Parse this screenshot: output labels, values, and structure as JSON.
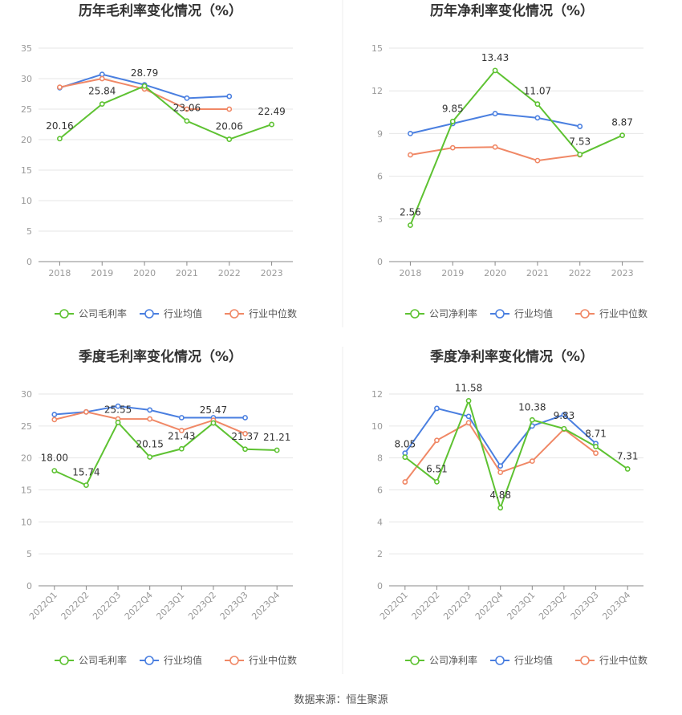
{
  "source_text": "数据来源：恒生聚源",
  "colors": {
    "company": "#5ec232",
    "avg": "#4a7fe0",
    "median": "#f08866",
    "grid": "#e6e6e6",
    "axis": "#888888",
    "tick": "#999999",
    "title": "#333333"
  },
  "chart_data": [
    {
      "type": "line",
      "title": "历年毛利率变化情况（%）",
      "categories": [
        "2018",
        "2019",
        "2020",
        "2021",
        "2022",
        "2023"
      ],
      "ylim": [
        0,
        35
      ],
      "yticks": [
        0,
        5,
        10,
        15,
        20,
        25,
        30,
        35
      ],
      "rotate_x": false,
      "series": [
        {
          "name": "公司毛利率",
          "values": [
            20.16,
            25.84,
            28.79,
            23.06,
            20.06,
            22.49
          ],
          "labels": [
            "20.16",
            "25.84",
            "28.79",
            "23.06",
            "20.06",
            "22.49"
          ]
        },
        {
          "name": "行业均值",
          "values": [
            28.5,
            30.7,
            29.0,
            26.8,
            27.1,
            null
          ]
        },
        {
          "name": "行业中位数",
          "values": [
            28.6,
            30.0,
            28.3,
            25.0,
            25.0,
            null
          ]
        }
      ]
    },
    {
      "type": "line",
      "title": "历年净利率变化情况（%）",
      "categories": [
        "2018",
        "2019",
        "2020",
        "2021",
        "2022",
        "2023"
      ],
      "ylim": [
        0,
        15
      ],
      "yticks": [
        0,
        3,
        6,
        9,
        12,
        15
      ],
      "rotate_x": false,
      "series": [
        {
          "name": "公司净利率",
          "values": [
            2.56,
            9.85,
            13.43,
            11.07,
            7.53,
            8.87
          ],
          "labels": [
            "2.56",
            "9.85",
            "13.43",
            "11.07",
            "7.53",
            "8.87"
          ]
        },
        {
          "name": "行业均值",
          "values": [
            9.0,
            9.7,
            10.4,
            10.1,
            9.5,
            null
          ]
        },
        {
          "name": "行业中位数",
          "values": [
            7.5,
            8.0,
            8.05,
            7.1,
            7.5,
            null
          ]
        }
      ]
    },
    {
      "type": "line",
      "title": "季度毛利率变化情况（%）",
      "categories": [
        "2022Q1",
        "2022Q2",
        "2022Q3",
        "2022Q4",
        "2023Q1",
        "2023Q2",
        "2023Q3",
        "2023Q4"
      ],
      "ylim": [
        0,
        30
      ],
      "yticks": [
        0,
        5,
        10,
        15,
        20,
        25,
        30
      ],
      "rotate_x": true,
      "series": [
        {
          "name": "公司毛利率",
          "values": [
            18.0,
            15.74,
            25.55,
            20.15,
            21.43,
            25.47,
            21.37,
            21.21
          ],
          "labels": [
            "18.00",
            "15.74",
            "25.55",
            "20.15",
            "21.43",
            "25.47",
            "21.37",
            "21.21"
          ]
        },
        {
          "name": "行业均值",
          "values": [
            26.8,
            27.2,
            28.1,
            27.5,
            26.3,
            26.3,
            26.3,
            null
          ]
        },
        {
          "name": "行业中位数",
          "values": [
            26.0,
            27.2,
            26.1,
            26.1,
            24.3,
            25.9,
            23.8,
            null
          ]
        }
      ]
    },
    {
      "type": "line",
      "title": "季度净利率变化情况（%）",
      "categories": [
        "2022Q1",
        "2022Q2",
        "2022Q3",
        "2022Q4",
        "2023Q1",
        "2023Q2",
        "2023Q3",
        "2023Q4"
      ],
      "ylim": [
        0,
        12
      ],
      "yticks": [
        0,
        2,
        4,
        6,
        8,
        10,
        12
      ],
      "rotate_x": true,
      "series": [
        {
          "name": "公司净利率",
          "values": [
            8.05,
            6.51,
            11.58,
            4.88,
            10.38,
            9.83,
            8.71,
            7.31
          ],
          "labels": [
            "8.05",
            "6.51",
            "11.58",
            "4.88",
            "10.38",
            "9.83",
            "8.71",
            "7.31"
          ]
        },
        {
          "name": "行业均值",
          "values": [
            8.3,
            11.1,
            10.6,
            7.5,
            10.0,
            10.7,
            8.9,
            null
          ]
        },
        {
          "name": "行业中位数",
          "values": [
            6.5,
            9.1,
            10.2,
            7.1,
            7.8,
            9.8,
            8.3,
            null
          ]
        }
      ]
    }
  ]
}
